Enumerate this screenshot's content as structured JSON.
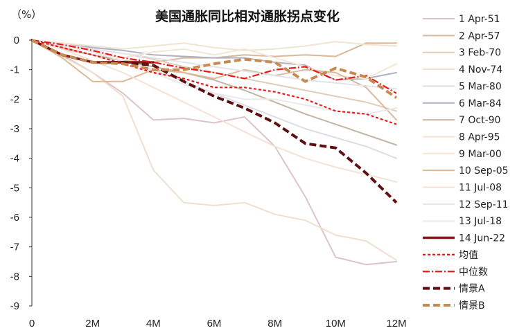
{
  "chart_data": {
    "type": "line",
    "title": "美国通胀同比相对通胀拐点变化",
    "y_unit": "（%）",
    "xlabel": "",
    "ylabel": "",
    "ylim": [
      -9,
      0
    ],
    "xlim": [
      0,
      12
    ],
    "x_ticks": [
      0,
      2,
      4,
      6,
      8,
      10,
      12
    ],
    "x_tick_labels": [
      "0",
      "2M",
      "4M",
      "6M",
      "8M",
      "10M",
      "12M"
    ],
    "y_ticks": [
      0,
      -1,
      -2,
      -3,
      -4,
      -5,
      -6,
      -7,
      -8,
      -9
    ],
    "y_tick_labels": [
      "0",
      "-1",
      "-2",
      "-3",
      "-4",
      "-5",
      "-6",
      "-7",
      "-8",
      "-9"
    ],
    "grid": false,
    "legend_position": "right",
    "x": [
      0,
      1,
      2,
      3,
      4,
      5,
      6,
      7,
      8,
      9,
      10,
      11,
      12
    ],
    "series": [
      {
        "name": "1 Apr-51",
        "color": "#dcc4c8",
        "width": 2,
        "dash": "solid",
        "values": [
          0,
          -0.5,
          -1.1,
          -1.8,
          -2.7,
          -2.65,
          -2.8,
          -2.6,
          -3.6,
          -5.3,
          -7.35,
          -7.6,
          -7.5
        ]
      },
      {
        "name": "2 Apr-57",
        "color": "#d8b79a",
        "width": 2,
        "dash": "solid",
        "values": [
          0,
          -0.3,
          -0.5,
          -0.7,
          -0.75,
          -0.6,
          -0.6,
          -0.5,
          -0.55,
          -0.5,
          -0.55,
          -0.1,
          -0.1
        ]
      },
      {
        "name": "3 Feb-70",
        "color": "#e2cdb6",
        "width": 2,
        "dash": "solid",
        "values": [
          0,
          -0.15,
          -0.3,
          -0.45,
          -0.65,
          -0.9,
          -1.1,
          -1.3,
          -1.5,
          -1.7,
          -1.9,
          -2.1,
          -2.4
        ]
      },
      {
        "name": "4 Nov-74",
        "color": "#f1dfcd",
        "width": 2,
        "dash": "solid",
        "values": [
          0,
          -0.55,
          -1.1,
          -1.9,
          -4.4,
          -5.5,
          -5.6,
          -5.5,
          -5.9,
          -6.1,
          -6.6,
          -6.8,
          -7.45
        ]
      },
      {
        "name": "5 Mar-80",
        "color": "#dbdde8",
        "width": 2,
        "dash": "solid",
        "values": [
          0,
          -0.2,
          -0.4,
          -0.7,
          -1.0,
          -1.4,
          -1.8,
          -2.2,
          -2.6,
          -3.0,
          -3.3,
          -3.6,
          -4.0
        ]
      },
      {
        "name": "6 Mar-84",
        "color": "#adb3c3",
        "width": 2,
        "dash": "solid",
        "values": [
          0,
          -0.1,
          -0.25,
          -0.35,
          -0.5,
          -0.55,
          -0.6,
          -0.6,
          -0.75,
          -0.85,
          -1.35,
          -1.3,
          -1.1
        ]
      },
      {
        "name": "7 Oct-90",
        "color": "#c4b4a4",
        "width": 2,
        "dash": "solid",
        "values": [
          0,
          -0.25,
          -0.5,
          -0.7,
          -0.9,
          -1.1,
          -1.35,
          -1.7,
          -2.1,
          -2.5,
          -2.85,
          -3.2,
          -3.55
        ]
      },
      {
        "name": "8 Apr-95",
        "color": "#f0e4d0",
        "width": 2,
        "dash": "solid",
        "values": [
          0,
          -0.1,
          -0.2,
          -0.3,
          -0.2,
          -0.1,
          -0.25,
          -0.35,
          -0.3,
          -0.2,
          -0.05,
          -0.15,
          -0.2
        ]
      },
      {
        "name": "9 Mar-00",
        "color": "#f3e6d3",
        "width": 2,
        "dash": "solid",
        "values": [
          0,
          -0.1,
          -0.4,
          -0.6,
          -0.4,
          -0.3,
          -0.5,
          -0.3,
          -0.6,
          -0.9,
          -1.2,
          -1.3,
          -0.8
        ]
      },
      {
        "name": "10 Sep-05",
        "color": "#dcb998",
        "width": 2,
        "dash": "solid",
        "values": [
          0,
          -0.6,
          -1.4,
          -1.4,
          -1.0,
          -1.1,
          -1.3,
          -1.0,
          -1.2,
          -1.0,
          -1.1,
          -1.6,
          -2.7
        ]
      },
      {
        "name": "11 Jul-08",
        "color": "#f4e3d5",
        "width": 2,
        "dash": "solid",
        "values": [
          0,
          -0.3,
          -0.7,
          -1.1,
          -1.6,
          -2.1,
          -2.6,
          -3.1,
          -3.6,
          -4.0,
          -4.3,
          -4.55,
          -4.8
        ]
      },
      {
        "name": "12 Sep-11",
        "color": "#e2e4ea",
        "width": 2,
        "dash": "solid",
        "values": [
          0,
          -0.15,
          -0.3,
          -0.45,
          -0.6,
          -0.75,
          -0.9,
          -1.05,
          -1.2,
          -1.35,
          -1.45,
          -1.55,
          -1.65
        ]
      },
      {
        "name": "13 Jul-18",
        "color": "#ebe8ec",
        "width": 2,
        "dash": "solid",
        "values": [
          0,
          -0.2,
          -0.4,
          -0.7,
          -1.1,
          -1.5,
          -1.8,
          -2.0,
          -2.0,
          -2.2,
          -2.4,
          -2.5,
          -2.3
        ]
      },
      {
        "name": "14 Jun-22",
        "color": "#7a1a1a",
        "width": 3.5,
        "dash": "solid",
        "values": [
          0,
          -0.5,
          -0.75,
          -0.75,
          -0.75,
          null,
          null,
          null,
          null,
          null,
          null,
          null,
          null
        ]
      },
      {
        "name": "均值",
        "color": "#e81818",
        "width": 2.2,
        "dash": "4,3",
        "values": [
          0,
          -0.25,
          -0.5,
          -0.8,
          -1.1,
          -1.3,
          -1.6,
          -1.6,
          -1.75,
          -2.0,
          -2.4,
          -2.5,
          -2.85
        ]
      },
      {
        "name": "中位数",
        "color": "#e81818",
        "width": 2.2,
        "dash": "10,3,2,3",
        "values": [
          0,
          -0.15,
          -0.35,
          -0.6,
          -0.75,
          -0.95,
          -1.1,
          -1.3,
          -1.0,
          -0.9,
          -1.35,
          -1.2,
          -1.8
        ]
      },
      {
        "name": "情景A",
        "color": "#5e0f0f",
        "width": 4,
        "dash": "10,5",
        "values": [
          0,
          -0.5,
          -0.75,
          -0.75,
          -0.85,
          -1.4,
          -1.9,
          -2.3,
          -2.8,
          -3.5,
          -3.65,
          -4.5,
          -5.5
        ]
      },
      {
        "name": "情景B",
        "color": "#c98a52",
        "width": 4,
        "dash": "10,5",
        "values": [
          0,
          -0.5,
          -0.75,
          -0.8,
          -1.0,
          -1.0,
          -0.8,
          -0.65,
          -0.75,
          -1.4,
          -0.95,
          -1.25,
          -1.95
        ]
      }
    ]
  }
}
